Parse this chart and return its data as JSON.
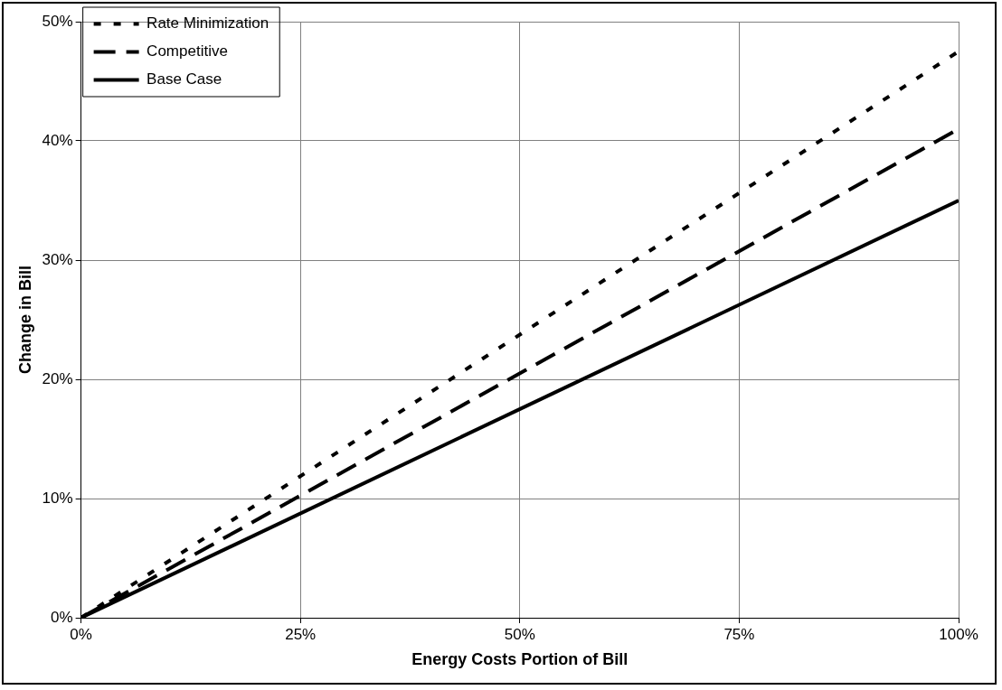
{
  "chart_data": {
    "type": "line",
    "xlabel": "Energy Costs Portion of Bill",
    "ylabel": "Change in Bill",
    "x": [
      0,
      100
    ],
    "series": [
      {
        "name": "Rate Minimization",
        "color": "#000000",
        "values": [
          0,
          47.5
        ],
        "line_style": "dotted"
      },
      {
        "name": "Competitive",
        "color": "#000000",
        "values": [
          0,
          41
        ],
        "line_style": "dashed"
      },
      {
        "name": "Base Case",
        "color": "#000000",
        "values": [
          0,
          35
        ],
        "line_style": "solid"
      }
    ],
    "xlim": [
      0,
      100
    ],
    "xticks": [
      {
        "value": 0,
        "label": "0%"
      },
      {
        "value": 25,
        "label": "25%"
      },
      {
        "value": 50,
        "label": "50%"
      },
      {
        "value": 75,
        "label": "75%"
      },
      {
        "value": 100,
        "label": "100%"
      }
    ],
    "ylim": [
      0,
      50
    ],
    "yticks": [
      {
        "value": 0,
        "label": "0%"
      },
      {
        "value": 10,
        "label": "10%"
      },
      {
        "value": 20,
        "label": "20%"
      },
      {
        "value": 30,
        "label": "30%"
      },
      {
        "value": 40,
        "label": "40%"
      },
      {
        "value": 50,
        "label": "50%"
      }
    ],
    "grid": true,
    "legend": "top left",
    "marker": "none"
  }
}
